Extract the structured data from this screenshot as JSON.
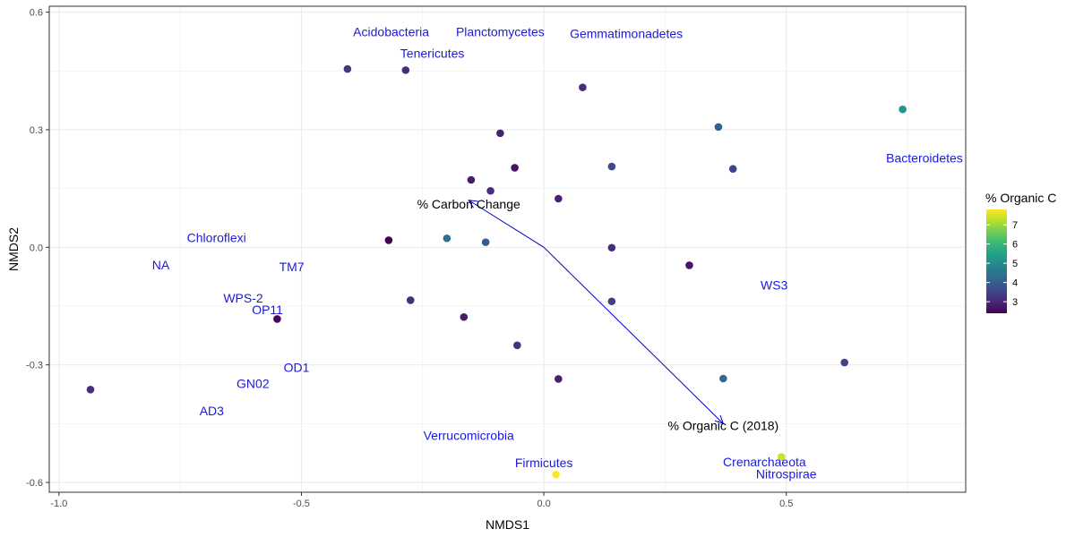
{
  "chart_data": {
    "type": "scatter",
    "xlabel": "NMDS1",
    "ylabel": "NMDS2",
    "xlim": [
      -1.02,
      0.87
    ],
    "ylim": [
      -0.625,
      0.615
    ],
    "x_ticks": [
      -1.0,
      -0.5,
      0.0,
      0.5
    ],
    "x_tick_labels": [
      "-1.0",
      "-0.5",
      "0.0",
      "0.5"
    ],
    "y_ticks": [
      -0.6,
      -0.3,
      0.0,
      0.3,
      0.6
    ],
    "y_tick_labels": [
      "-0.6",
      "-0.3",
      "0.0",
      "0.3",
      "0.6"
    ],
    "grid": true,
    "points": [
      {
        "x": -0.935,
        "y": -0.363,
        "c": 3.1
      },
      {
        "x": -0.405,
        "y": 0.455,
        "c": 3.3
      },
      {
        "x": -0.285,
        "y": 0.452,
        "c": 3.1
      },
      {
        "x": 0.08,
        "y": 0.408,
        "c": 3.1
      },
      {
        "x": -0.09,
        "y": 0.291,
        "c": 2.9
      },
      {
        "x": 0.36,
        "y": 0.307,
        "c": 4.0
      },
      {
        "x": 0.74,
        "y": 0.352,
        "c": 5.2
      },
      {
        "x": -0.06,
        "y": 0.203,
        "c": 2.7
      },
      {
        "x": 0.14,
        "y": 0.206,
        "c": 3.6
      },
      {
        "x": 0.39,
        "y": 0.2,
        "c": 3.5
      },
      {
        "x": -0.15,
        "y": 0.172,
        "c": 2.8
      },
      {
        "x": -0.11,
        "y": 0.144,
        "c": 3.1
      },
      {
        "x": 0.03,
        "y": 0.124,
        "c": 2.9
      },
      {
        "x": -0.32,
        "y": 0.018,
        "c": 2.4
      },
      {
        "x": -0.2,
        "y": 0.023,
        "c": 4.4
      },
      {
        "x": -0.12,
        "y": 0.013,
        "c": 4.0
      },
      {
        "x": 0.14,
        "y": -0.001,
        "c": 3.1
      },
      {
        "x": 0.3,
        "y": -0.046,
        "c": 2.7
      },
      {
        "x": -0.275,
        "y": -0.135,
        "c": 3.1
      },
      {
        "x": -0.165,
        "y": -0.178,
        "c": 2.8
      },
      {
        "x": 0.14,
        "y": -0.138,
        "c": 3.4
      },
      {
        "x": -0.55,
        "y": -0.183,
        "c": 2.5
      },
      {
        "x": -0.055,
        "y": -0.25,
        "c": 3.2
      },
      {
        "x": 0.03,
        "y": -0.336,
        "c": 2.9
      },
      {
        "x": 0.37,
        "y": -0.335,
        "c": 4.3
      },
      {
        "x": 0.62,
        "y": -0.294,
        "c": 3.5
      },
      {
        "x": 0.49,
        "y": -0.535,
        "c": 7.4
      },
      {
        "x": 0.025,
        "y": -0.58,
        "c": 7.8
      }
    ],
    "color_scale": {
      "title": "% Organic C",
      "min": 2.4,
      "max": 7.8,
      "ticks": [
        "3",
        "4",
        "5",
        "6",
        "7"
      ],
      "tick_values": [
        3,
        4,
        5,
        6,
        7
      ],
      "palette": [
        "#440154",
        "#482878",
        "#3E4A89",
        "#31688E",
        "#26828E",
        "#1F9E89",
        "#35B779",
        "#6DCD59",
        "#B4DE2C",
        "#FDE725"
      ]
    },
    "taxa_labels": [
      {
        "text": "Acidobacteria",
        "x": -0.315,
        "y": 0.55
      },
      {
        "text": "Tenericutes",
        "x": -0.23,
        "y": 0.495
      },
      {
        "text": "Planctomycetes",
        "x": -0.09,
        "y": 0.55
      },
      {
        "text": "Gemmatimonadetes",
        "x": 0.17,
        "y": 0.545
      },
      {
        "text": "Bacteroidetes",
        "x": 0.785,
        "y": 0.228
      },
      {
        "text": "Chloroflexi",
        "x": -0.675,
        "y": 0.025
      },
      {
        "text": "NA",
        "x": -0.79,
        "y": -0.045
      },
      {
        "text": "TM7",
        "x": -0.52,
        "y": -0.05
      },
      {
        "text": "WS3",
        "x": 0.475,
        "y": -0.096
      },
      {
        "text": "WPS-2",
        "x": -0.62,
        "y": -0.13
      },
      {
        "text": "OP11",
        "x": -0.57,
        "y": -0.159
      },
      {
        "text": "OD1",
        "x": -0.51,
        "y": -0.307
      },
      {
        "text": "GN02",
        "x": -0.6,
        "y": -0.348
      },
      {
        "text": "AD3",
        "x": -0.685,
        "y": -0.417
      },
      {
        "text": "Verrucomicrobia",
        "x": -0.155,
        "y": -0.48
      },
      {
        "text": "Firmicutes",
        "x": 0.0,
        "y": -0.55
      },
      {
        "text": "Crenarchaeota",
        "x": 0.455,
        "y": -0.547
      },
      {
        "text": "Nitrospirae",
        "x": 0.5,
        "y": -0.578
      }
    ],
    "vectors": [
      {
        "label": "% Carbon Change",
        "x": -0.155,
        "y": 0.12,
        "label_x": -0.155,
        "label_y": 0.11
      },
      {
        "label": "% Organic C (2018)",
        "x": 0.37,
        "y": -0.45,
        "label_x": 0.37,
        "label_y": -0.455
      }
    ],
    "colors": {
      "taxa": "#1a1adf",
      "vector": "#0000cd",
      "grid": "#ebebeb",
      "axis_text": "#4d4d4d"
    }
  }
}
